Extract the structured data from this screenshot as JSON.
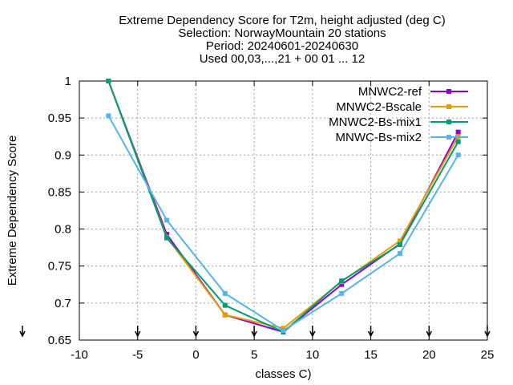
{
  "chart_data": {
    "type": "line",
    "title_lines": [
      "Extreme Dependency Score  for T2m, height adjusted (deg C)",
      "Selection: NorwayMountain     20 stations",
      "Period: 20240601-20240630",
      "Used 00,03,...,21 + 00 01 ... 12"
    ],
    "xlabel": "classes C)",
    "ylabel": "Extreme Dependency Score",
    "xlim": [
      -10,
      25
    ],
    "ylim": [
      0.65,
      1.0
    ],
    "xticks": [
      -10,
      -5,
      0,
      5,
      10,
      15,
      20,
      25
    ],
    "yticks": [
      0.65,
      0.7,
      0.75,
      0.8,
      0.85,
      0.9,
      0.95,
      1.0
    ],
    "ytick_labels": [
      "0.65",
      "0.7",
      "0.75",
      "0.8",
      "0.85",
      "0.9",
      "0.95",
      "1"
    ],
    "grid": true,
    "legend_position": "top-right",
    "x": [
      -7.5,
      -2.5,
      2.5,
      7.5,
      12.5,
      17.5,
      22.5
    ],
    "series": [
      {
        "name": "MNWC2-ref",
        "color": "#9400d3",
        "values": [
          1.0,
          0.793,
          0.684,
          0.661,
          0.725,
          0.78,
          0.931
        ]
      },
      {
        "name": "MNWC2-Bscale",
        "color": "#e69f00",
        "values": [
          1.0,
          0.789,
          0.684,
          0.666,
          0.729,
          0.784,
          0.925
        ]
      },
      {
        "name": "MNWC2-Bs-mix1",
        "color": "#009e73",
        "values": [
          1.0,
          0.788,
          0.697,
          0.661,
          0.73,
          0.779,
          0.918
        ]
      },
      {
        "name": "MNWC-Bs-mix2",
        "color": "#56b4e9",
        "values": [
          0.953,
          0.812,
          0.713,
          0.663,
          0.713,
          0.767,
          0.9
        ]
      }
    ]
  }
}
